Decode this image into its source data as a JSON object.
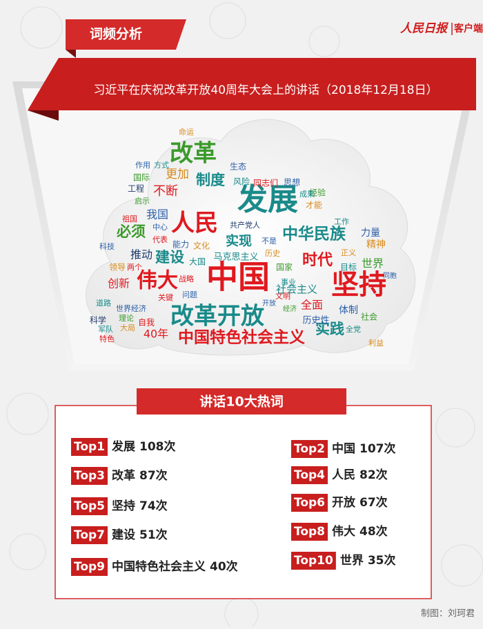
{
  "header": {
    "tag": "词频分析",
    "logo": "人民日报",
    "logo_suffix": "客户端",
    "subtitle": "习近平在庆祝改革开放40周年大会上的讲话（2018年12月18日）"
  },
  "word_cloud": {
    "words": [
      "中国",
      "发展",
      "坚持",
      "改革开放",
      "人民",
      "改革",
      "伟大",
      "中国特色社会主义",
      "中华民族",
      "时代",
      "实践",
      "制度",
      "必须",
      "建设",
      "实现",
      "不断",
      "更加",
      "推动",
      "创新",
      "社会主义",
      "全面",
      "世界",
      "40年",
      "我国",
      "马克思主义",
      "历史性",
      "体制",
      "精神",
      "力量",
      "社会",
      "大国",
      "能力",
      "文化",
      "思想",
      "同志们",
      "国际",
      "工程",
      "风险",
      "生态",
      "经验",
      "才能",
      "共产党人",
      "中心",
      "代表",
      "领导",
      "战略",
      "问题",
      "关键",
      "科学",
      "道路",
      "理论",
      "自我",
      "军队",
      "大局",
      "特色",
      "世界经济",
      "目标",
      "正义",
      "成果",
      "命运",
      "作用",
      "方式",
      "启示",
      "祖国",
      "科技",
      "两个",
      "历史",
      "不是",
      "国家",
      "事业",
      "文明",
      "开放",
      "利益",
      "全党",
      "同胞",
      "经济",
      "工作"
    ]
  },
  "top_words": {
    "title": "讲话10大热词",
    "items": [
      {
        "rank": "Top1",
        "word": "发展",
        "count": "108次"
      },
      {
        "rank": "Top2",
        "word": "中国",
        "count": "107次"
      },
      {
        "rank": "Top3",
        "word": "改革",
        "count": "87次"
      },
      {
        "rank": "Top4",
        "word": "人民",
        "count": "82次"
      },
      {
        "rank": "Top5",
        "word": "坚持",
        "count": "74次"
      },
      {
        "rank": "Top6",
        "word": "开放",
        "count": "67次"
      },
      {
        "rank": "Top7",
        "word": "建设",
        "count": "51次"
      },
      {
        "rank": "Top8",
        "word": "伟大",
        "count": "48次"
      },
      {
        "rank": "Top9",
        "word": "中国特色社会主义",
        "count": "40次"
      },
      {
        "rank": "Top10",
        "word": "世界",
        "count": "35次"
      }
    ]
  },
  "footer": {
    "credit": "制图：刘珂君"
  }
}
